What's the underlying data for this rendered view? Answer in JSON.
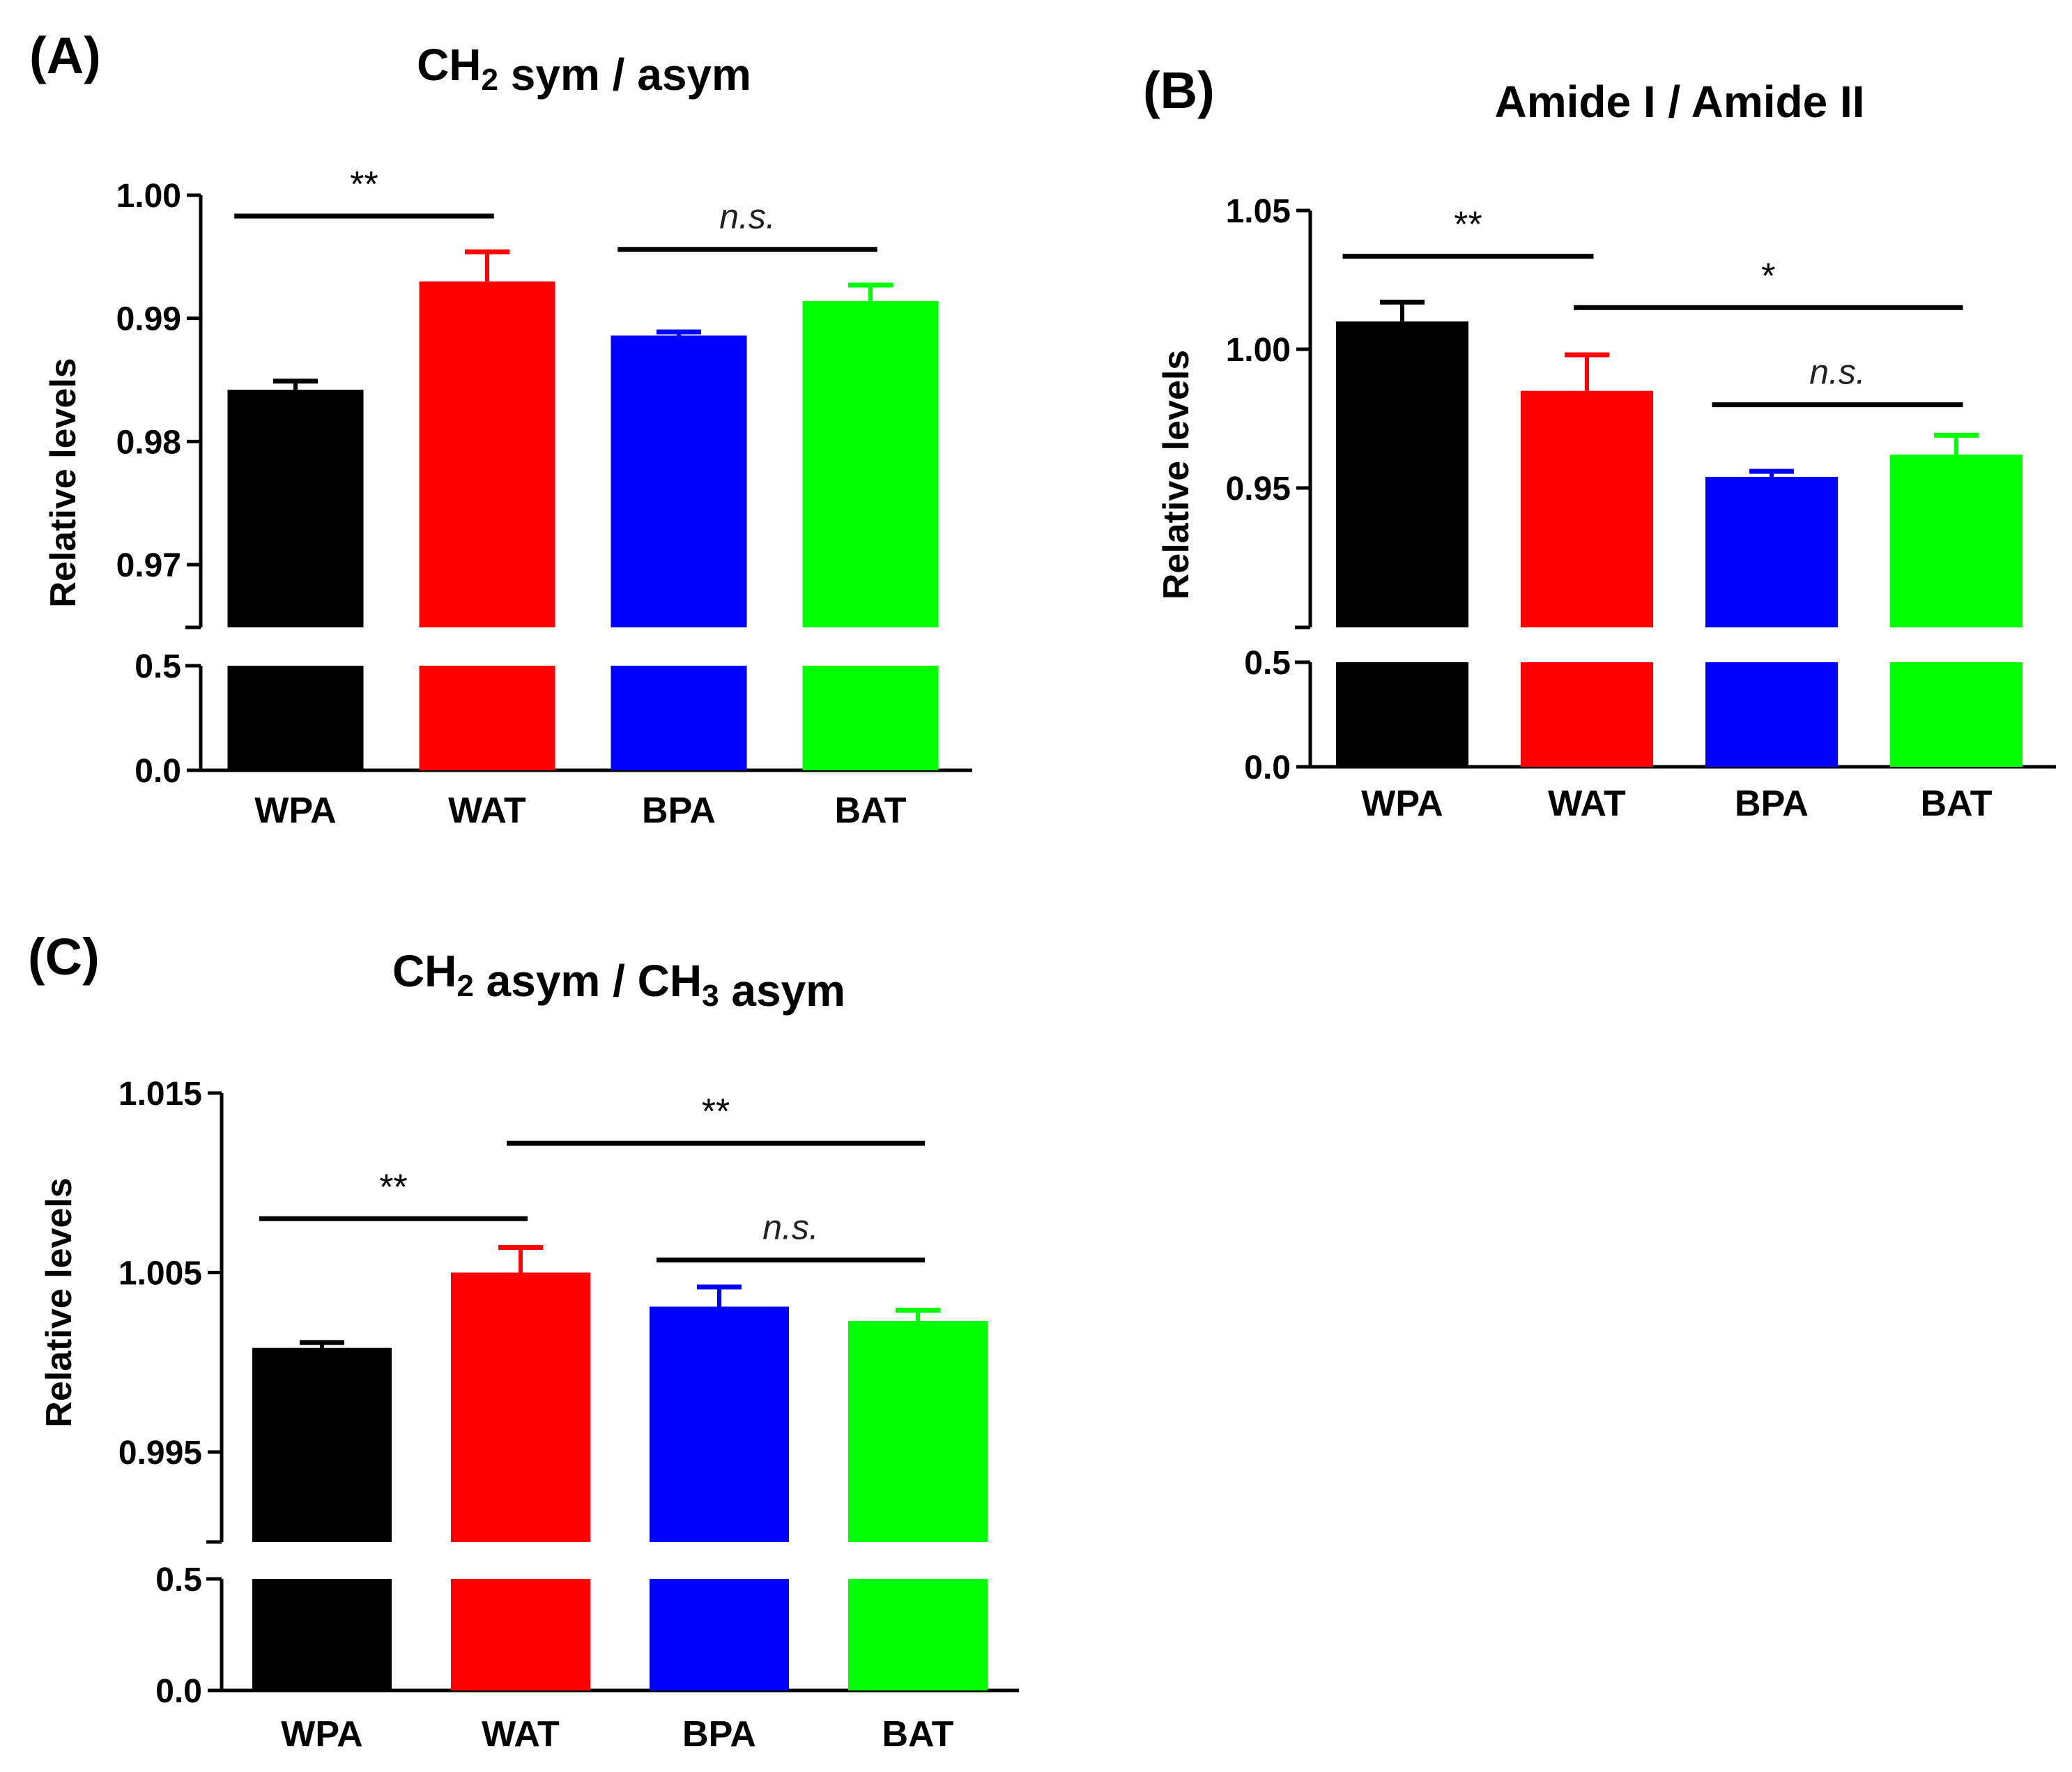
{
  "chart_data": [
    {
      "panel": "(A)",
      "type": "bar",
      "title": {
        "main": "CH",
        "sub": "2",
        "rest": " sym / asym"
      },
      "ylabel": "Relative levels",
      "categories": [
        "WPA",
        "WAT",
        "BPA",
        "BAT"
      ],
      "colors": [
        "#000000",
        "#ff0000",
        "#0000ff",
        "#00ff00"
      ],
      "values": [
        0.9842,
        0.993,
        0.9886,
        0.9914
      ],
      "errors": [
        0.0007,
        0.0024,
        0.0003,
        0.0013
      ],
      "axis_break": true,
      "upper_range": [
        0.965,
        1.0
      ],
      "upper_ticks": [
        "0.97",
        "0.98",
        "0.99",
        "1.00"
      ],
      "lower_range": [
        0.0,
        0.5
      ],
      "lower_ticks": [
        "0.0",
        "0.5"
      ],
      "significance": [
        {
          "from": 0,
          "to": 1,
          "level": 0.9983,
          "label": "**"
        },
        {
          "from": 2,
          "to": 3,
          "level": 0.9956,
          "label": "n.s."
        }
      ]
    },
    {
      "panel": "(B)",
      "type": "bar",
      "title": {
        "main": "Amide I / Amide II",
        "sub": "",
        "rest": ""
      },
      "ylabel": "Relative levels",
      "categories": [
        "WPA",
        "WAT",
        "BPA",
        "BAT"
      ],
      "colors": [
        "#000000",
        "#ff0000",
        "#0000ff",
        "#00ff00"
      ],
      "values": [
        1.01,
        0.985,
        0.954,
        0.962
      ],
      "errors": [
        0.007,
        0.013,
        0.002,
        0.007
      ],
      "axis_break": true,
      "upper_range": [
        0.9,
        1.05
      ],
      "upper_ticks": [
        "0.95",
        "1.00",
        "1.05"
      ],
      "lower_range": [
        0.0,
        0.5
      ],
      "lower_ticks": [
        "0.0",
        "0.5"
      ],
      "significance": [
        {
          "from": 0,
          "to": 1,
          "level": 1.0335,
          "label": "**"
        },
        {
          "from": 1,
          "to": 3,
          "level": 1.015,
          "label": "*"
        },
        {
          "from": 2,
          "to": 3,
          "level": 0.98,
          "label": "n.s."
        }
      ]
    },
    {
      "panel": "(C)",
      "type": "bar",
      "title": {
        "main": "CH",
        "sub": "2",
        "rest": " asym / CH",
        "sub2": "3",
        "rest2": " asym"
      },
      "ylabel": "Relative levels",
      "categories": [
        "WPA",
        "WAT",
        "BPA",
        "BAT"
      ],
      "colors": [
        "#000000",
        "#ff0000",
        "#0000ff",
        "#00ff00"
      ],
      "values": [
        1.0008,
        1.005,
        1.0031,
        1.0023
      ],
      "errors": [
        0.0003,
        0.0014,
        0.0011,
        0.0006
      ],
      "axis_break": true,
      "upper_range": [
        0.99,
        1.015
      ],
      "upper_ticks": [
        "0.995",
        "1.005",
        "1.015"
      ],
      "lower_range": [
        0.0,
        0.5
      ],
      "lower_ticks": [
        "0.0",
        "0.5"
      ],
      "significance": [
        {
          "from": 0,
          "to": 1,
          "level": 1.008,
          "label": "**"
        },
        {
          "from": 1,
          "to": 3,
          "level": 1.0122,
          "label": "**"
        },
        {
          "from": 2,
          "to": 3,
          "level": 1.0057,
          "label": "n.s."
        }
      ]
    }
  ]
}
